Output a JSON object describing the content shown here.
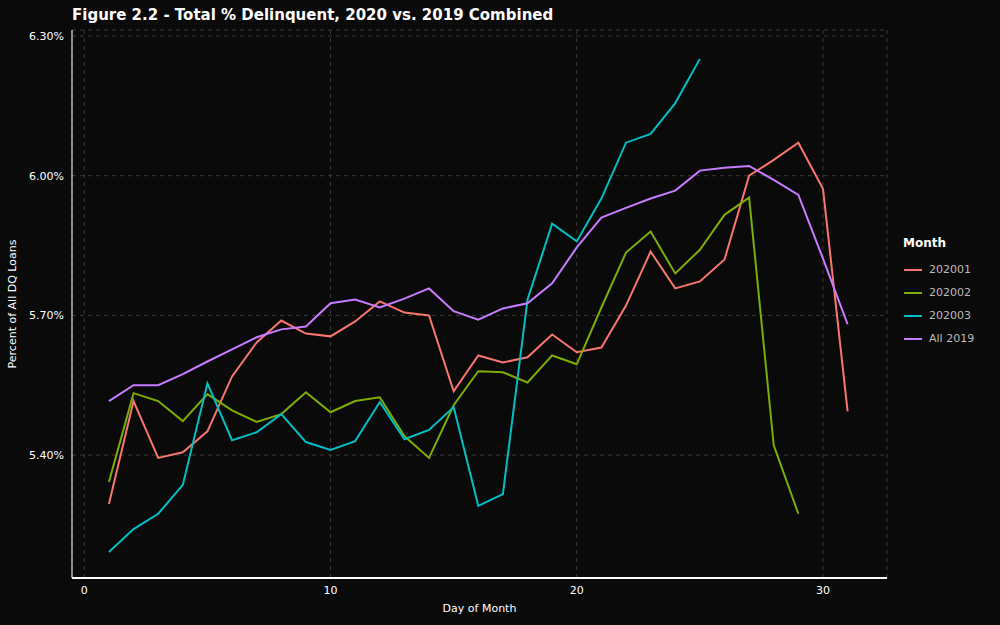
{
  "chart_data": {
    "type": "line",
    "title": "Figure 2.2 - Total % Delinquent, 2020 vs. 2019 Combined",
    "x_label": "Day of Month",
    "y_label": "Percent of All DQ Loans",
    "legend_title": "Month",
    "legend": "right",
    "grid": true,
    "x": [
      1,
      2,
      3,
      4,
      5,
      6,
      7,
      8,
      9,
      10,
      11,
      12,
      13,
      14,
      15,
      16,
      17,
      18,
      19,
      20,
      21,
      22,
      23,
      24,
      25,
      26,
      27,
      28,
      29,
      30,
      31
    ],
    "xlim": [
      -0.5,
      32.6
    ],
    "xticks": [
      0,
      10,
      20,
      30
    ],
    "ylim": [
      5.136,
      6.313
    ],
    "yticks": [
      {
        "value": 5.4,
        "label": "5.40%"
      },
      {
        "value": 5.7,
        "label": "5.70%"
      },
      {
        "value": 6.0,
        "label": "6.00%"
      },
      {
        "value": 6.3,
        "label": "6.30%"
      }
    ],
    "series": [
      {
        "name": "202001",
        "color": "#F8766D",
        "values": [
          5.295,
          5.516,
          5.394,
          5.406,
          5.451,
          5.569,
          5.642,
          5.689,
          5.661,
          5.655,
          5.687,
          5.73,
          5.706,
          5.7,
          5.537,
          5.614,
          5.599,
          5.61,
          5.659,
          5.621,
          5.631,
          5.721,
          5.837,
          5.758,
          5.773,
          5.82,
          6.0,
          6.034,
          6.071,
          5.972,
          5.494
        ]
      },
      {
        "name": "202002",
        "color": "#7CAE00",
        "values": [
          5.342,
          5.533,
          5.516,
          5.473,
          5.531,
          5.496,
          5.471,
          5.488,
          5.535,
          5.492,
          5.516,
          5.524,
          5.441,
          5.394,
          5.507,
          5.58,
          5.578,
          5.556,
          5.614,
          5.595,
          5.717,
          5.835,
          5.88,
          5.79,
          5.841,
          5.916,
          5.953,
          5.421,
          5.274,
          null,
          null
        ]
      },
      {
        "name": "202003",
        "color": "#00BFC4",
        "values": [
          5.192,
          5.241,
          5.274,
          5.336,
          5.554,
          5.432,
          5.449,
          5.488,
          5.428,
          5.411,
          5.43,
          5.514,
          5.434,
          5.454,
          5.503,
          5.291,
          5.316,
          5.734,
          5.897,
          5.859,
          5.951,
          6.071,
          6.09,
          6.156,
          6.251,
          null,
          null,
          null,
          null,
          null,
          null
        ]
      },
      {
        "name": "All 2019",
        "color": "#C77CFF",
        "values": [
          5.516,
          5.55,
          5.55,
          5.574,
          5.601,
          5.627,
          5.653,
          5.67,
          5.676,
          5.726,
          5.734,
          5.717,
          5.736,
          5.758,
          5.709,
          5.691,
          5.715,
          5.726,
          5.769,
          5.846,
          5.91,
          5.931,
          5.951,
          5.968,
          6.011,
          6.017,
          6.021,
          5.991,
          5.959,
          5.822,
          5.681
        ]
      }
    ]
  }
}
